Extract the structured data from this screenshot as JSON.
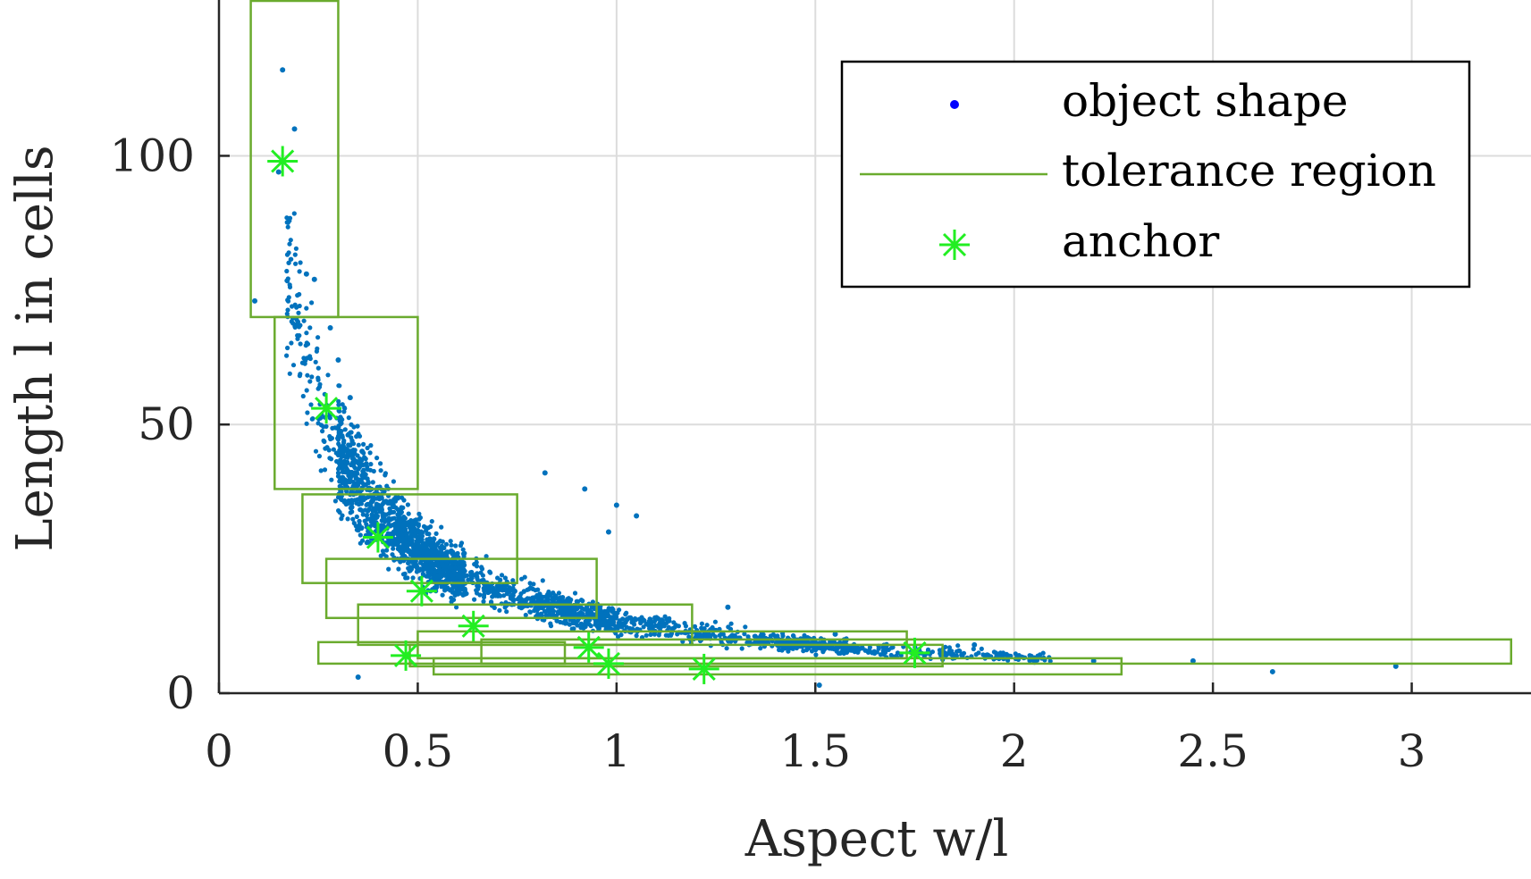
{
  "chart_data": {
    "type": "scatter",
    "xlabel": "Aspect w/l",
    "ylabel": "Length l in cells",
    "xlim": [
      0,
      3.3
    ],
    "ylim": [
      0,
      129
    ],
    "xticks": [
      0,
      0.5,
      1,
      1.5,
      2,
      2.5,
      3
    ],
    "xtick_labels": [
      "0",
      "0.5",
      "1",
      "1.5",
      "2",
      "2.5",
      "3"
    ],
    "yticks": [
      0,
      50,
      100
    ],
    "ytick_labels": [
      "0",
      "50",
      "100"
    ],
    "grid": true,
    "legend_position": "top-right",
    "legend": [
      {
        "label": "object shape",
        "marker": "dot",
        "color": "#0000ff"
      },
      {
        "label": "tolerance region",
        "marker": "line",
        "color": "#6aab2e"
      },
      {
        "label": "anchor",
        "marker": "asterisk",
        "color": "#22ee22"
      }
    ],
    "series": [
      {
        "name": "tolerance region",
        "kind": "rectangles",
        "color": "#6aab2e",
        "regions": [
          {
            "x_min": 0.08,
            "x_max": 0.3,
            "y_min": 70,
            "y_max": 129
          },
          {
            "x_min": 0.14,
            "x_max": 0.5,
            "y_min": 38,
            "y_max": 70
          },
          {
            "x_min": 0.21,
            "x_max": 0.75,
            "y_min": 20.5,
            "y_max": 37
          },
          {
            "x_min": 0.27,
            "x_max": 0.95,
            "y_min": 14,
            "y_max": 25
          },
          {
            "x_min": 0.35,
            "x_max": 1.19,
            "y_min": 9,
            "y_max": 16.5
          },
          {
            "x_min": 0.5,
            "x_max": 1.73,
            "y_min": 6.5,
            "y_max": 11.5
          },
          {
            "x_min": 0.25,
            "x_max": 0.87,
            "y_min": 5.5,
            "y_max": 9.5
          },
          {
            "x_min": 0.48,
            "x_max": 1.82,
            "y_min": 5,
            "y_max": 9
          },
          {
            "x_min": 0.54,
            "x_max": 2.27,
            "y_min": 3.5,
            "y_max": 6.5
          },
          {
            "x_min": 0.66,
            "x_max": 3.25,
            "y_min": 5.5,
            "y_max": 10
          }
        ]
      },
      {
        "name": "anchor",
        "kind": "points",
        "color": "#22ee22",
        "points": [
          {
            "x": 0.16,
            "y": 99
          },
          {
            "x": 0.27,
            "y": 53
          },
          {
            "x": 0.4,
            "y": 29
          },
          {
            "x": 0.51,
            "y": 19
          },
          {
            "x": 0.64,
            "y": 12.5
          },
          {
            "x": 0.47,
            "y": 7
          },
          {
            "x": 0.93,
            "y": 8.5
          },
          {
            "x": 0.98,
            "y": 5.5
          },
          {
            "x": 1.22,
            "y": 4.5
          },
          {
            "x": 1.75,
            "y": 7.5
          }
        ]
      },
      {
        "name": "object shape",
        "kind": "scatter-cloud",
        "color": "#0072bd",
        "curve": "y = 13.5 / x (approximate hyperbolic trend)",
        "samples": [
          {
            "x": 0.16,
            "y": 116
          },
          {
            "x": 0.19,
            "y": 105
          },
          {
            "x": 0.15,
            "y": 97
          },
          {
            "x": 0.22,
            "y": 78
          },
          {
            "x": 0.09,
            "y": 73
          },
          {
            "x": 0.24,
            "y": 77
          },
          {
            "x": 0.28,
            "y": 68
          },
          {
            "x": 0.3,
            "y": 62
          },
          {
            "x": 0.33,
            "y": 55
          },
          {
            "x": 0.36,
            "y": 45
          },
          {
            "x": 0.4,
            "y": 35
          },
          {
            "x": 0.45,
            "y": 31
          },
          {
            "x": 0.55,
            "y": 24
          },
          {
            "x": 0.65,
            "y": 20
          },
          {
            "x": 0.82,
            "y": 41
          },
          {
            "x": 0.92,
            "y": 38
          },
          {
            "x": 1.0,
            "y": 35
          },
          {
            "x": 1.05,
            "y": 33
          },
          {
            "x": 0.98,
            "y": 30
          },
          {
            "x": 1.28,
            "y": 16
          },
          {
            "x": 1.55,
            "y": 11
          },
          {
            "x": 1.9,
            "y": 9
          },
          {
            "x": 2.2,
            "y": 6
          },
          {
            "x": 2.45,
            "y": 6
          },
          {
            "x": 2.65,
            "y": 4
          },
          {
            "x": 2.96,
            "y": 5
          },
          {
            "x": 0.35,
            "y": 3
          },
          {
            "x": 1.51,
            "y": 1.5
          }
        ]
      }
    ]
  }
}
